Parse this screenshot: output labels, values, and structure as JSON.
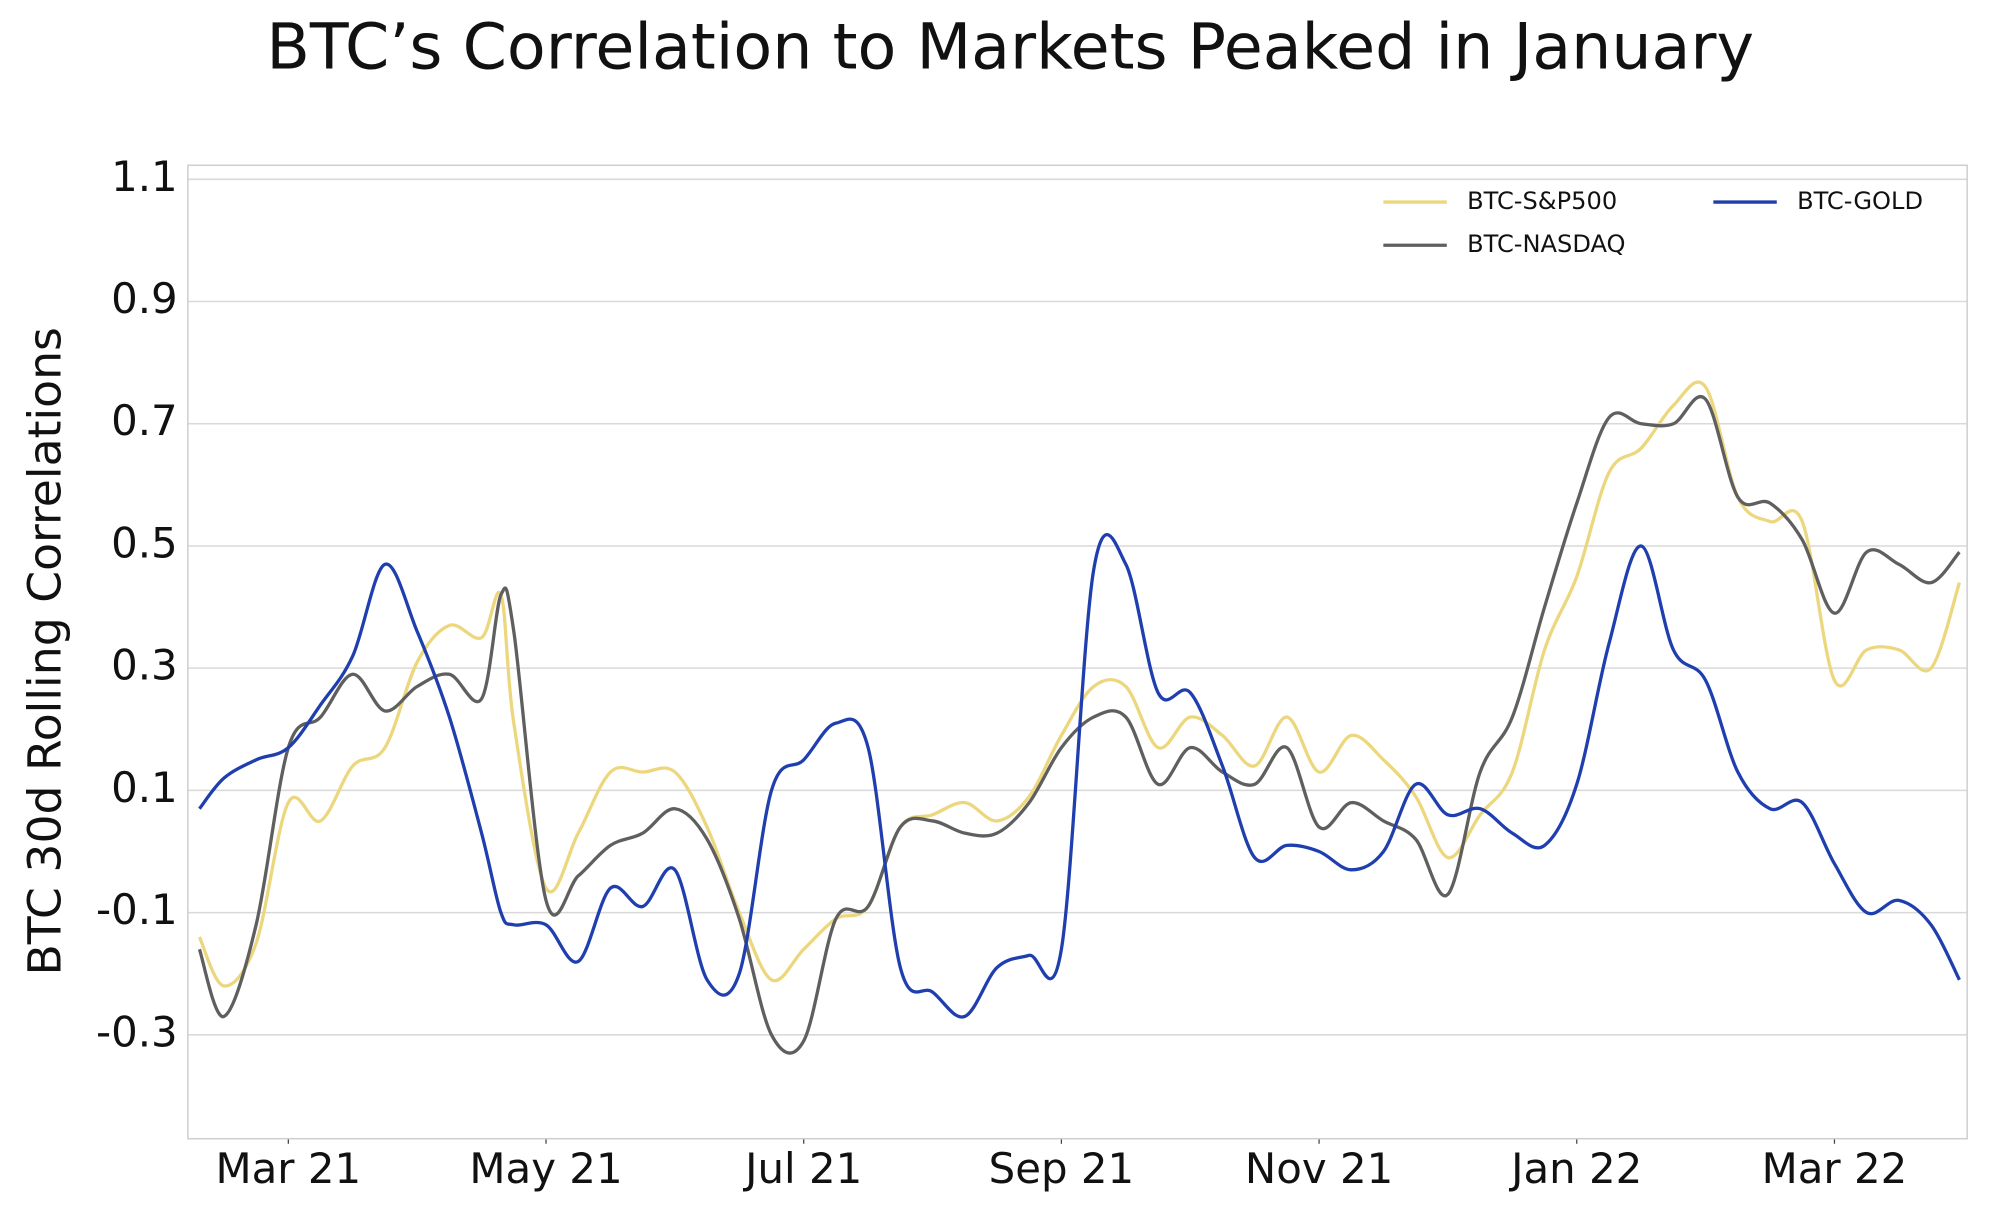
{
  "chart_data": {
    "type": "line",
    "title": "BTC’s Correlation to Markets Peaked in January",
    "y_label": "BTC 30d Rolling Correlations",
    "x": [
      2.31,
      2.5,
      2.75,
      3,
      3.25,
      3.5,
      3.75,
      4,
      4.25,
      4.5,
      4.65,
      4.75,
      5,
      5.25,
      5.5,
      5.75,
      6,
      6.25,
      6.5,
      6.75,
      7,
      7.25,
      7.5,
      7.75,
      8,
      8.25,
      8.5,
      8.75,
      9,
      9.25,
      9.5,
      9.75,
      10,
      10.25,
      10.5,
      10.75,
      11,
      11.25,
      11.5,
      11.75,
      12,
      12.25,
      12.5,
      12.75,
      13,
      13.25,
      13.5,
      13.75,
      14,
      14.25,
      14.5,
      14.75,
      15,
      15.25,
      15.5,
      15.75,
      15.97
    ],
    "series": [
      {
        "name": "BTC-S&P500",
        "color": "#ecd77e",
        "values": [
          -0.14,
          -0.22,
          -0.15,
          0.08,
          0.05,
          0.14,
          0.17,
          0.31,
          0.37,
          0.35,
          0.42,
          0.21,
          -0.06,
          0.03,
          0.13,
          0.13,
          0.13,
          0.04,
          -0.1,
          -0.21,
          -0.16,
          -0.11,
          -0.09,
          0.04,
          0.06,
          0.08,
          0.05,
          0.09,
          0.19,
          0.27,
          0.27,
          0.17,
          0.22,
          0.19,
          0.14,
          0.22,
          0.13,
          0.19,
          0.15,
          0.09,
          -0.01,
          0.06,
          0.13,
          0.33,
          0.45,
          0.62,
          0.66,
          0.73,
          0.76,
          0.58,
          0.54,
          0.54,
          0.28,
          0.33,
          0.33,
          0.3,
          0.44
        ]
      },
      {
        "name": "BTC-NASDAQ",
        "color": "#5f5f5f",
        "values": [
          -0.16,
          -0.27,
          -0.12,
          0.17,
          0.22,
          0.29,
          0.23,
          0.27,
          0.29,
          0.25,
          0.42,
          0.36,
          -0.08,
          -0.04,
          0.01,
          0.03,
          0.07,
          0.02,
          -0.11,
          -0.3,
          -0.31,
          -0.11,
          -0.09,
          0.04,
          0.05,
          0.03,
          0.03,
          0.08,
          0.17,
          0.22,
          0.22,
          0.11,
          0.17,
          0.13,
          0.11,
          0.17,
          0.04,
          0.08,
          0.05,
          0.02,
          -0.07,
          0.13,
          0.22,
          0.4,
          0.57,
          0.71,
          0.7,
          0.7,
          0.74,
          0.58,
          0.57,
          0.51,
          0.39,
          0.49,
          0.47,
          0.44,
          0.49
        ]
      },
      {
        "name": "BTC-GOLD",
        "color": "#1f3fae",
        "values": [
          0.07,
          0.12,
          0.15,
          0.17,
          0.24,
          0.32,
          0.47,
          0.36,
          0.22,
          0.03,
          -0.1,
          -0.12,
          -0.12,
          -0.18,
          -0.06,
          -0.09,
          -0.03,
          -0.21,
          -0.2,
          0.1,
          0.15,
          0.21,
          0.17,
          -0.19,
          -0.23,
          -0.27,
          -0.19,
          -0.17,
          -0.16,
          0.46,
          0.47,
          0.26,
          0.26,
          0.14,
          -0.01,
          0.01,
          0.0,
          -0.03,
          0.0,
          0.11,
          0.06,
          0.07,
          0.03,
          0.01,
          0.11,
          0.34,
          0.5,
          0.33,
          0.28,
          0.13,
          0.07,
          0.08,
          -0.02,
          -0.1,
          -0.08,
          -0.12,
          -0.21
        ]
      }
    ],
    "xlim": [
      2.22,
      16.03
    ],
    "xticks": [
      {
        "value": 3,
        "label": "Mar 21"
      },
      {
        "value": 5,
        "label": "May 21"
      },
      {
        "value": 7,
        "label": "Jul 21"
      },
      {
        "value": 9,
        "label": "Sep 21"
      },
      {
        "value": 11,
        "label": "Nov 21"
      },
      {
        "value": 13,
        "label": "Jan 22"
      },
      {
        "value": 15,
        "label": "Mar 22"
      }
    ],
    "ylim": [
      -0.47,
      1.123
    ],
    "yticks": [
      1.1,
      0.9,
      0.7,
      0.5,
      0.3,
      0.1,
      -0.1,
      -0.3
    ],
    "grid": true,
    "legend": "upper right"
  }
}
